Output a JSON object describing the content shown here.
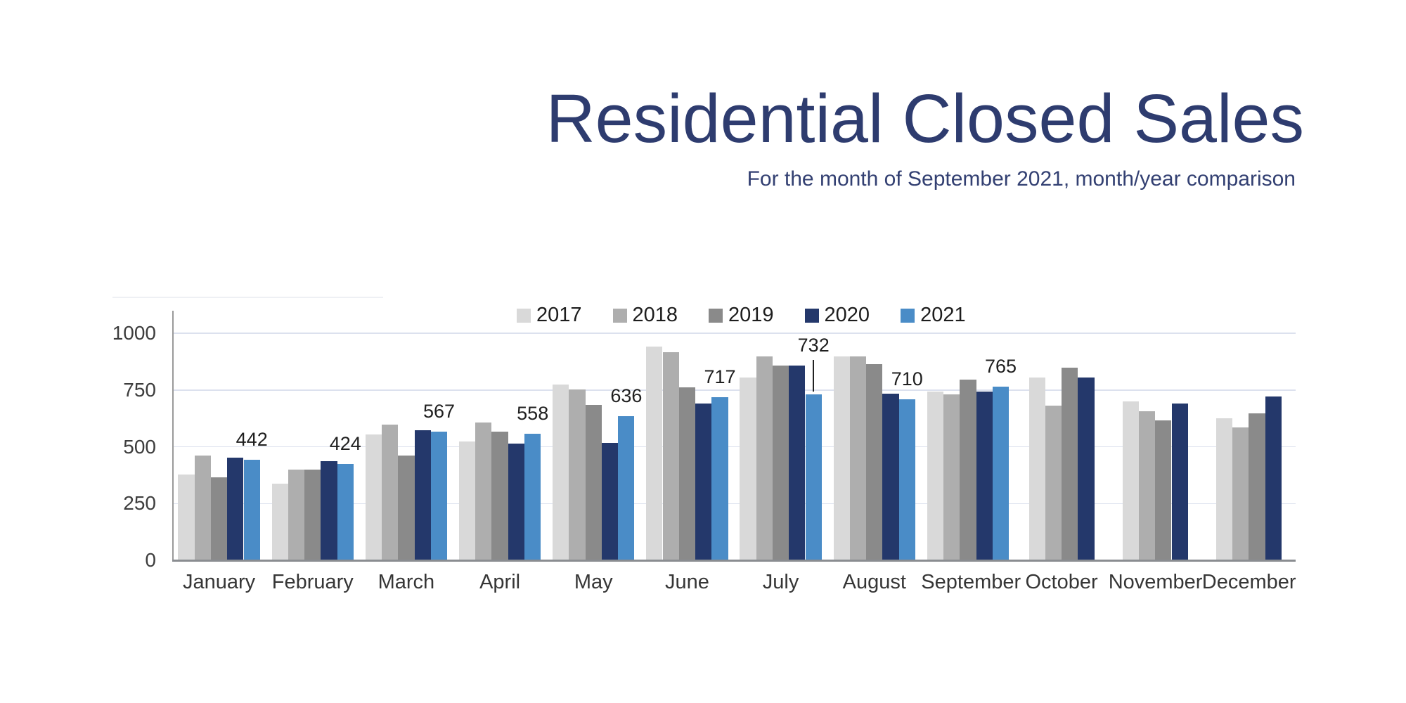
{
  "header": {
    "title": "Residential Closed Sales",
    "subtitle": "For the month of September 2021, month/year comparison"
  },
  "legend": {
    "items": [
      {
        "label": "2017",
        "color": "#d9d9d9"
      },
      {
        "label": "2018",
        "color": "#aeaeae"
      },
      {
        "label": "2019",
        "color": "#8a8a8a"
      },
      {
        "label": "2020",
        "color": "#24386b"
      },
      {
        "label": "2021",
        "color": "#4a8cc7"
      }
    ]
  },
  "colors": {
    "title": "#2e3c6f",
    "axis_line": "#9a9a9a",
    "x_axis_line": "#8a8d91",
    "gridline": "#dce1ee",
    "frame_line": "#eef0f4",
    "tick_label": "#3d3d3d",
    "month_label": "#363636",
    "data_label": "#1f1f1f",
    "legend_label": "#1d1d1d",
    "leader_line": "#222222"
  },
  "chart_data": {
    "type": "bar",
    "title": "Residential Closed Sales",
    "subtitle": "For the month of September 2021, month/year comparison",
    "categories": [
      "January",
      "February",
      "March",
      "April",
      "May",
      "June",
      "July",
      "August",
      "September",
      "October",
      "November",
      "December"
    ],
    "series": [
      {
        "name": "2017",
        "color": "#d9d9d9",
        "values": [
          378,
          337,
          553,
          522,
          775,
          940,
          805,
          898,
          742,
          805,
          700,
          625
        ]
      },
      {
        "name": "2018",
        "color": "#aeaeae",
        "values": [
          460,
          399,
          598,
          608,
          753,
          918,
          898,
          898,
          731,
          680,
          658,
          584
        ]
      },
      {
        "name": "2019",
        "color": "#8a8a8a",
        "values": [
          365,
          399,
          461,
          567,
          683,
          762,
          857,
          864,
          797,
          848,
          615,
          646
        ]
      },
      {
        "name": "2020",
        "color": "#24386b",
        "values": [
          452,
          437,
          574,
          513,
          517,
          691,
          857,
          734,
          744,
          805,
          690,
          720
        ]
      },
      {
        "name": "2021",
        "color": "#4a8cc7",
        "values": [
          442,
          424,
          567,
          558,
          636,
          717,
          732,
          710,
          765,
          null,
          null,
          null
        ]
      }
    ],
    "value_labels": {
      "series": "2021",
      "values": [
        442,
        424,
        567,
        558,
        636,
        717,
        732,
        710,
        765
      ]
    },
    "label_leader_categories": [
      "July"
    ],
    "xlabel": "",
    "ylabel": "",
    "y_ticks": [
      0,
      250,
      500,
      750,
      1000
    ],
    "ylim": [
      0,
      1100
    ],
    "grid": "horizontal",
    "legend_position": "top-center"
  }
}
